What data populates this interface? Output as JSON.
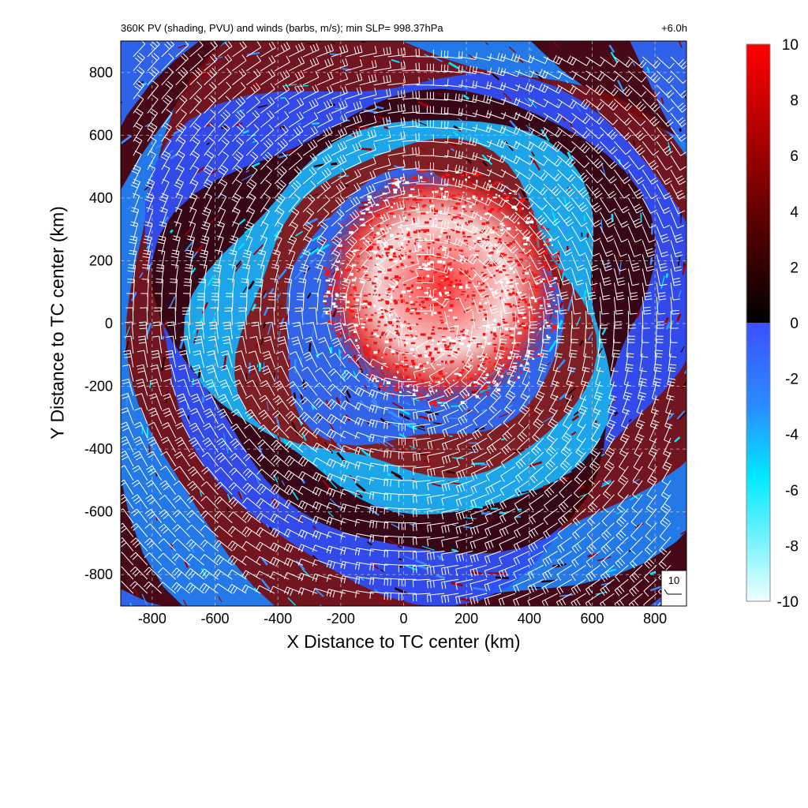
{
  "chart_data": {
    "type": "heatmap",
    "title": "360K PV (shading, PVU) and winds (barbs, m/s); min SLP= 998.37hPa",
    "subtitle_right": "+6.0h",
    "xlabel": "X Distance to TC center (km)",
    "ylabel": "Y Distance to TC center (km)",
    "xlim": [
      -900,
      900
    ],
    "ylim": [
      -900,
      900
    ],
    "xticks": [
      -800,
      -600,
      -400,
      -200,
      0,
      200,
      400,
      600,
      800
    ],
    "yticks": [
      -800,
      -600,
      -400,
      -200,
      0,
      200,
      400,
      600,
      800
    ],
    "grid": true,
    "colorbar": {
      "label": "",
      "range": [
        -10,
        10
      ],
      "ticks": [
        10,
        8,
        6,
        4,
        2,
        0,
        -2,
        -4,
        -6,
        -8,
        -10
      ],
      "negative_colors": [
        "#f0ffff",
        "#00ffff",
        "#2a7fff",
        "#3a50ff"
      ],
      "positive_colors": [
        "#000000",
        "#5a0000",
        "#b40000",
        "#ff0000"
      ]
    },
    "wind_barb_reference": {
      "label": "10",
      "units": "m/s"
    },
    "features": {
      "core_region": {
        "center_km": [
          120,
          120
        ],
        "radius_km": 380,
        "values": "white / red mix, PV > 6"
      },
      "spiral_band_colors": "alternating blue (negative PV) and dark red (positive PV)"
    }
  }
}
